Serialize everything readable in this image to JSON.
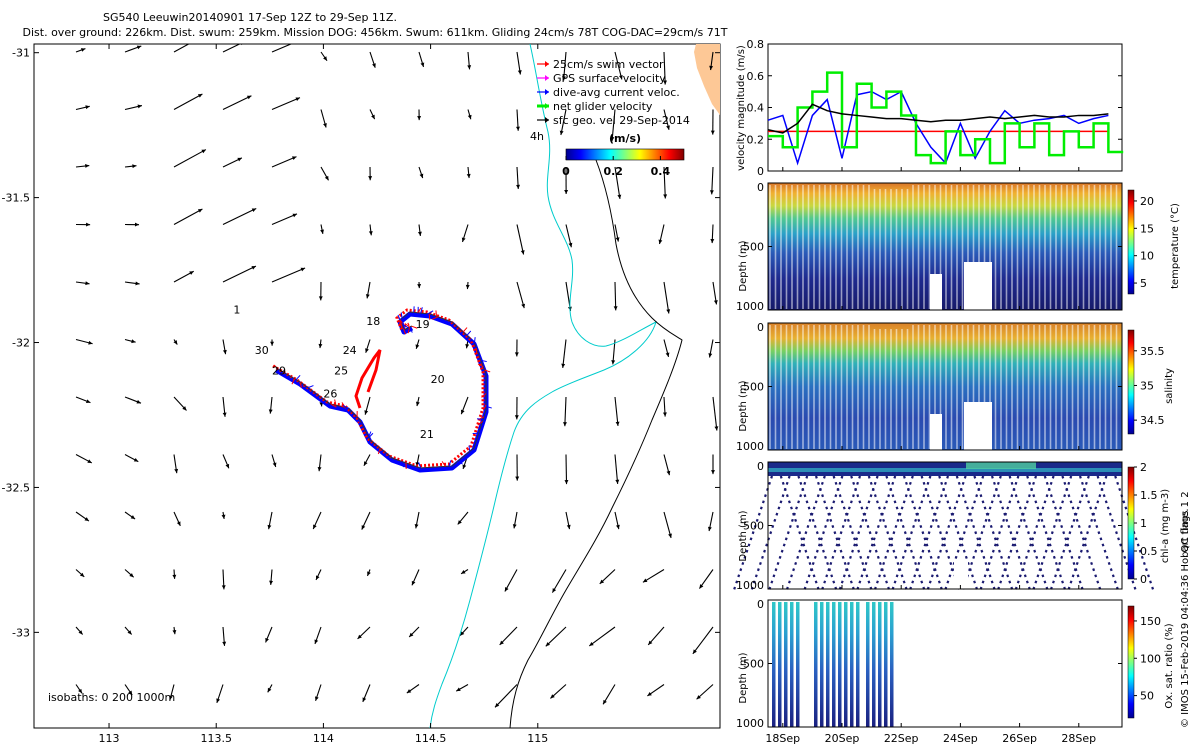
{
  "header": {
    "line1": "SG540 Leeuwin20140901 17-Sep 12Z to 29-Sep 11Z.",
    "line2": "Dist. over ground: 226km. Dist. swum: 259km. Mission DOG: 456km. Swum: 611km. Gliding 24cm/s 78T COG-DAC=29cm/s 71T"
  },
  "map": {
    "xticks": [
      113,
      113.5,
      114,
      114.5,
      115
    ],
    "xtick_labels": [
      "113",
      "113.5",
      "114",
      "114.5",
      "115"
    ],
    "yticks": [
      -31,
      -31.5,
      -32,
      -32.5,
      -33
    ],
    "ytick_labels": [
      "-31",
      "-31.5",
      "-32",
      "-32.5",
      "-33"
    ],
    "xlim": [
      112.65,
      115.85
    ],
    "ylim": [
      -33.33,
      -30.97
    ],
    "legend": [
      {
        "label": "25cm/s swim vector",
        "color": "#ff0000"
      },
      {
        "label": "GPS surface velocity",
        "color": "#ff00ff"
      },
      {
        "label": "dive-avg current veloc.",
        "color": "#0000ff"
      },
      {
        "label": "net glider velocity",
        "color": "#00ee00"
      },
      {
        "label": "sfc geo. vel 29-Sep-2014",
        "color": "#000000"
      }
    ],
    "age_label": "4h",
    "colorbar": {
      "title": "(m/s)",
      "ticks": [
        "0",
        "0.2",
        "0.4"
      ],
      "range": [
        0,
        0.5
      ]
    },
    "isobath_label": "isobaths: 0   200  1000m",
    "day_labels": [
      {
        "text": "1",
        "lon": 113.58,
        "lat": -31.9
      },
      {
        "text": "18",
        "lon": 114.2,
        "lat": -31.94
      },
      {
        "text": "19",
        "lon": 114.43,
        "lat": -31.95
      },
      {
        "text": "30",
        "lon": 113.68,
        "lat": -32.04
      },
      {
        "text": "24",
        "lon": 114.09,
        "lat": -32.04
      },
      {
        "text": "25",
        "lon": 114.05,
        "lat": -32.11
      },
      {
        "text": "29",
        "lon": 113.76,
        "lat": -32.11
      },
      {
        "text": "20",
        "lon": 114.5,
        "lat": -32.14
      },
      {
        "text": "26",
        "lon": 114.0,
        "lat": -32.19
      },
      {
        "text": "21",
        "lon": 114.45,
        "lat": -32.33
      }
    ]
  },
  "chart_data": [
    {
      "type": "line",
      "title": "velocity magnitude",
      "ylabel": "velocity magnitude (m/s)",
      "ylim": [
        0,
        0.8
      ],
      "yticks": [
        "0",
        "0.2",
        "0.4",
        "0.6",
        "0.8"
      ],
      "x": [
        17.5,
        18,
        18.5,
        19,
        19.5,
        20,
        20.5,
        21,
        21.5,
        22,
        22.5,
        23,
        23.5,
        24,
        24.5,
        25,
        25.5,
        26,
        26.5,
        27,
        27.5,
        28,
        28.5,
        29
      ],
      "series": [
        {
          "name": "swim vector",
          "color": "#ff0000",
          "values": [
            0.25,
            0.25,
            0.25,
            0.25,
            0.25,
            0.25,
            0.25,
            0.25,
            0.25,
            0.25,
            0.25,
            0.25,
            0.25,
            0.25,
            0.25,
            0.25,
            0.25,
            0.25,
            0.25,
            0.25,
            0.25,
            0.25,
            0.25,
            0.25
          ]
        },
        {
          "name": "dive-avg current",
          "color": "#0000ff",
          "values": [
            0.32,
            0.35,
            0.05,
            0.35,
            0.45,
            0.08,
            0.48,
            0.5,
            0.45,
            0.5,
            0.3,
            0.15,
            0.05,
            0.3,
            0.08,
            0.25,
            0.38,
            0.3,
            0.32,
            0.33,
            0.35,
            0.3,
            0.33,
            0.35
          ]
        },
        {
          "name": "net glider",
          "color": "#00ee00",
          "values": [
            0.22,
            0.15,
            0.4,
            0.5,
            0.62,
            0.15,
            0.55,
            0.4,
            0.5,
            0.35,
            0.1,
            0.05,
            0.25,
            0.1,
            0.2,
            0.05,
            0.3,
            0.15,
            0.3,
            0.1,
            0.25,
            0.15,
            0.3,
            0.12
          ]
        },
        {
          "name": "sfc geo",
          "color": "#000000",
          "values": [
            0.26,
            0.24,
            0.3,
            0.42,
            0.38,
            0.36,
            0.35,
            0.34,
            0.33,
            0.33,
            0.32,
            0.31,
            0.32,
            0.32,
            0.33,
            0.34,
            0.33,
            0.34,
            0.35,
            0.34,
            0.34,
            0.35,
            0.35,
            0.36
          ]
        }
      ]
    },
    {
      "type": "heatmap",
      "title": "temperature",
      "ylabel": "Depth (m)",
      "ylim": [
        1000,
        0
      ],
      "yticks": [
        "0",
        "500",
        "1000"
      ],
      "colorbar_label": "temperature (°C)",
      "colorbar_ticks": [
        "5",
        "10",
        "15",
        "20"
      ],
      "colorbar_range": [
        3,
        22
      ]
    },
    {
      "type": "heatmap",
      "title": "salinity",
      "ylabel": "Depth (m)",
      "ylim": [
        1000,
        0
      ],
      "yticks": [
        "0",
        "500",
        "1000"
      ],
      "colorbar_label": "salinity",
      "colorbar_ticks": [
        "34.5",
        "35",
        "35.5"
      ],
      "colorbar_range": [
        34.3,
        35.8
      ]
    },
    {
      "type": "heatmap",
      "title": "chl-a",
      "ylabel": "Depth (m)",
      "ylim": [
        1000,
        0
      ],
      "yticks": [
        "0",
        "500",
        "1000"
      ],
      "colorbar_label": "chl-a (mg m-3)",
      "colorbar_ticks": [
        "0",
        "0.5",
        "1",
        "1.5",
        "2"
      ],
      "colorbar_range": [
        0,
        2
      ]
    },
    {
      "type": "heatmap",
      "title": "oxygen saturation",
      "ylabel": "Depth (m)",
      "ylim": [
        1000,
        0
      ],
      "yticks": [
        "0",
        "500",
        "1000"
      ],
      "colorbar_label": "Ox. sat. ratio (%)",
      "colorbar_ticks": [
        "50",
        "100",
        "150"
      ],
      "colorbar_range": [
        20,
        170
      ],
      "xticks": [
        "18Sep",
        "20Sep",
        "22Sep",
        "24Sep",
        "26Sep",
        "28Sep"
      ]
    }
  ],
  "qc_label": "QC flags 1  2",
  "footer": "© IMOS 15-Feb-2019 04:04:36 Hobart time."
}
